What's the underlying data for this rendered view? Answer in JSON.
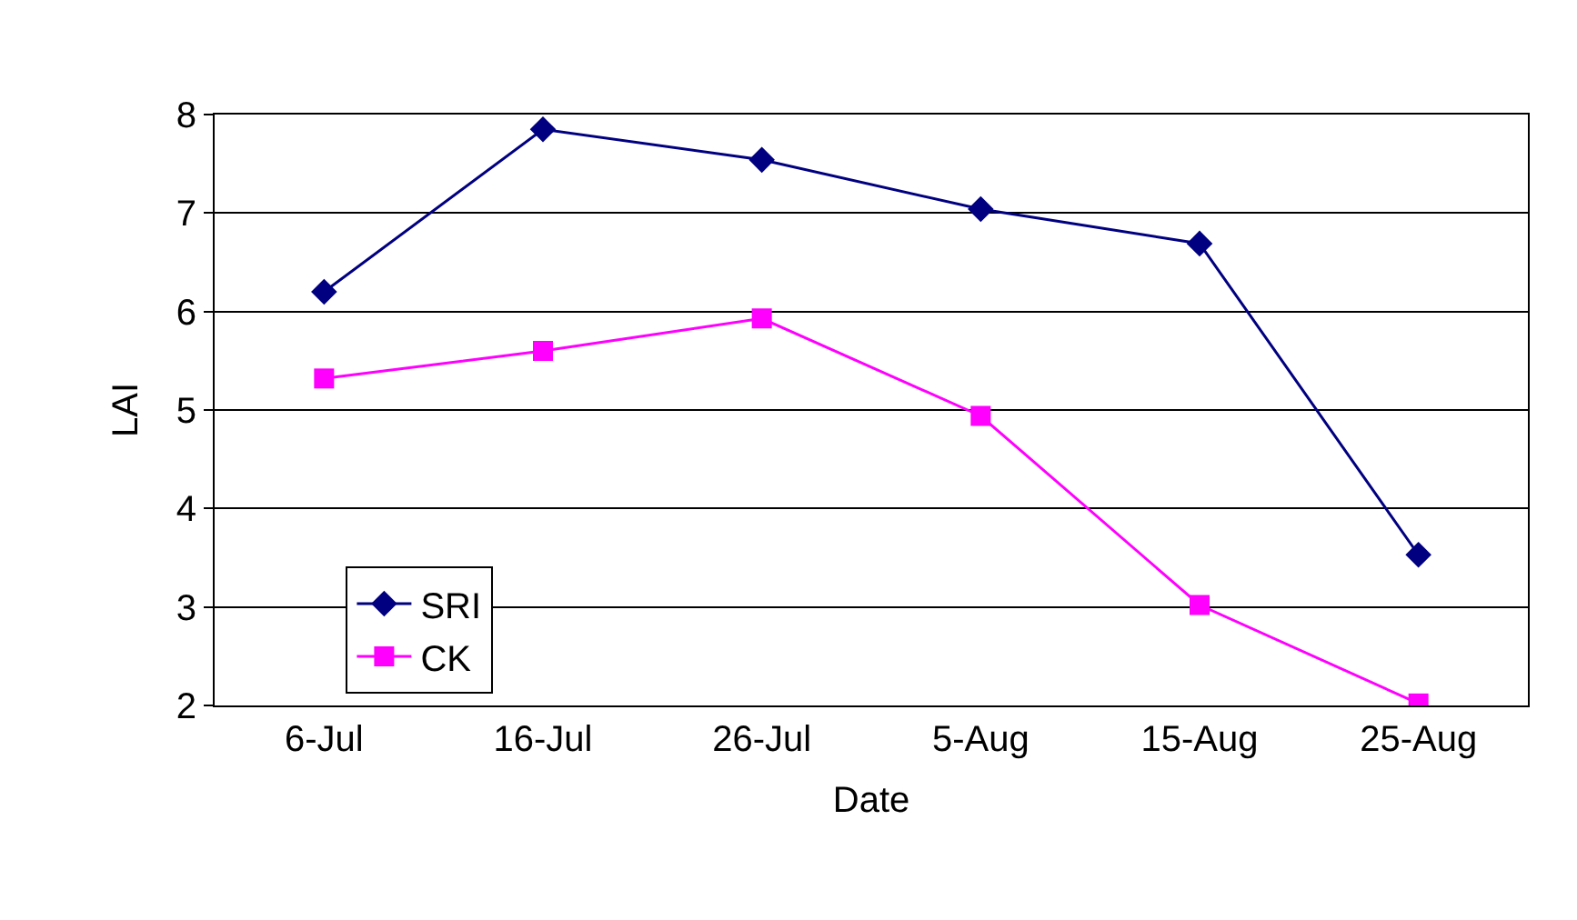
{
  "chart_data": {
    "type": "line",
    "xlabel": "Date",
    "ylabel": "LAI",
    "categories": [
      "6-Jul",
      "16-Jul",
      "26-Jul",
      "5-Aug",
      "15-Aug",
      "25-Aug"
    ],
    "series": [
      {
        "name": "SRI",
        "color": "#000080",
        "marker": "diamond",
        "values": [
          6.2,
          7.85,
          7.54,
          7.04,
          6.69,
          3.53
        ]
      },
      {
        "name": "CK",
        "color": "#ff00ff",
        "marker": "square",
        "values": [
          5.32,
          5.6,
          5.93,
          4.94,
          3.02,
          2.02
        ]
      }
    ],
    "ylim": [
      2,
      8
    ],
    "yticks": [
      2,
      3,
      4,
      5,
      6,
      7,
      8
    ],
    "grid": "y",
    "legend": "bottom left",
    "line_style": "solid"
  }
}
